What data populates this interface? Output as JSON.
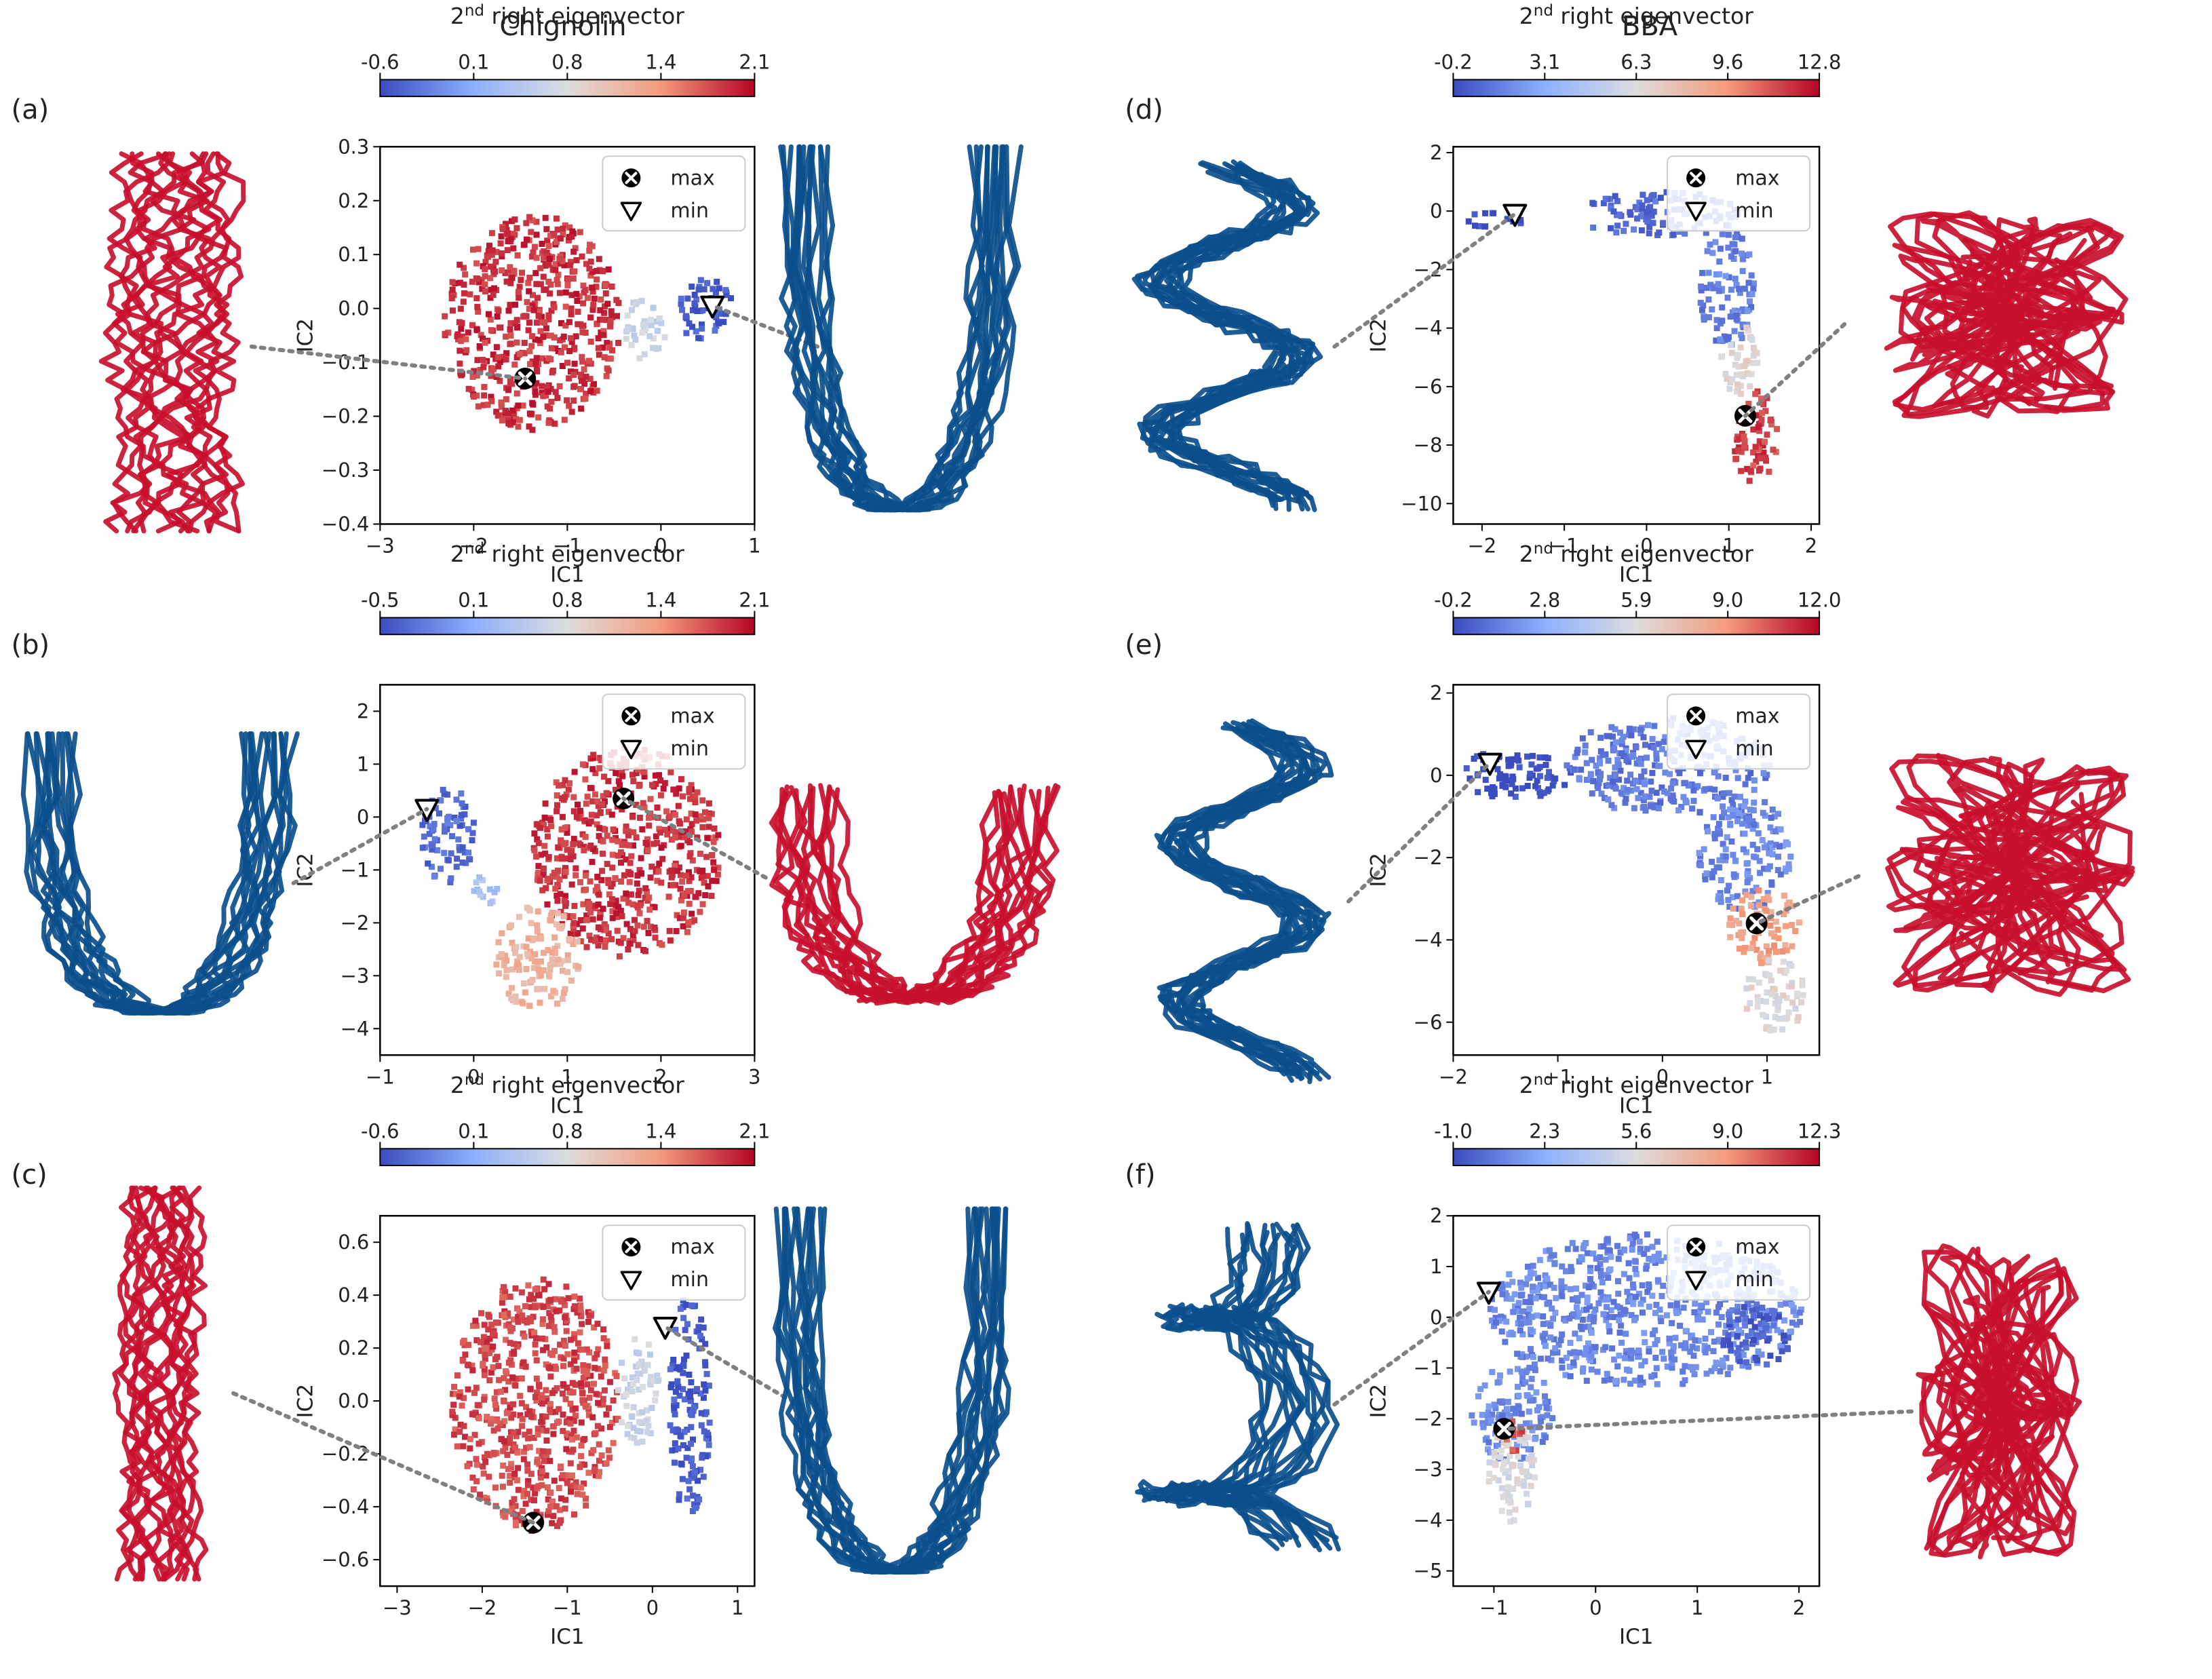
{
  "columns": [
    {
      "title": "Chignolin"
    },
    {
      "title": "BBA"
    }
  ],
  "colorbar_label": {
    "main": "2",
    "sup": "nd",
    "rest": " right eigenvector"
  },
  "legend": {
    "max": "max",
    "min": "min"
  },
  "colors": {
    "structure_max": "#c8102e",
    "structure_min": "#0b4f8c",
    "cmap_low": "#3b4cc0",
    "cmap_mid": "#dddddd",
    "cmap_high": "#b40426",
    "connector": "#808080"
  },
  "chart_data": [
    {
      "panel": "(a)",
      "type": "heatmap",
      "xlabel": "IC1",
      "ylabel": "IC2",
      "xlim": [
        -3,
        1
      ],
      "ylim": [
        -0.4,
        0.3
      ],
      "xticks": [
        "−3",
        "−2",
        "−1",
        "0",
        "1"
      ],
      "yticks": [
        "−0.4",
        "−0.3",
        "−0.2",
        "−0.1",
        "0.0",
        "0.1",
        "0.2",
        "0.3"
      ],
      "colorbar": {
        "ticks": [
          "-0.6",
          "0.1",
          "0.8",
          "1.4",
          "2.1"
        ],
        "min": -0.6,
        "max": 2.1
      },
      "max_point": [
        -1.45,
        -0.13
      ],
      "min_point": [
        0.55,
        0.005
      ],
      "clusters": [
        {
          "cx": -1.4,
          "cy": -0.02,
          "rx": 0.95,
          "ry": 0.2,
          "value": 1.9
        },
        {
          "cx": -0.2,
          "cy": -0.03,
          "rx": 0.22,
          "ry": 0.06,
          "value": 0.6
        },
        {
          "cx": 0.45,
          "cy": 0.0,
          "rx": 0.3,
          "ry": 0.06,
          "value": -0.5
        }
      ]
    },
    {
      "panel": "(b)",
      "type": "heatmap",
      "xlabel": "IC1",
      "ylabel": "IC2",
      "xlim": [
        -1,
        3
      ],
      "ylim": [
        -4.5,
        2.5
      ],
      "xticks": [
        "−1",
        "0",
        "1",
        "2",
        "3"
      ],
      "yticks": [
        "−4",
        "−3",
        "−2",
        "−1",
        "0",
        "1",
        "2"
      ],
      "colorbar": {
        "ticks": [
          "-0.5",
          "0.1",
          "0.8",
          "1.4",
          "2.1"
        ],
        "min": -0.5,
        "max": 2.1
      },
      "max_point": [
        1.6,
        0.35
      ],
      "min_point": [
        -0.5,
        0.15
      ],
      "clusters": [
        {
          "cx": 1.6,
          "cy": -0.6,
          "rx": 1.0,
          "ry": 2.0,
          "value": 1.9
        },
        {
          "cx": 0.65,
          "cy": -2.6,
          "rx": 0.45,
          "ry": 1.0,
          "value": 1.2
        },
        {
          "cx": -0.3,
          "cy": -0.3,
          "rx": 0.3,
          "ry": 0.9,
          "value": -0.3
        },
        {
          "cx": 0.1,
          "cy": -1.3,
          "rx": 0.15,
          "ry": 0.3,
          "value": 0.4
        }
      ]
    },
    {
      "panel": "(c)",
      "type": "heatmap",
      "xlabel": "IC1",
      "ylabel": "IC2",
      "xlim": [
        -3.2,
        1.2
      ],
      "ylim": [
        -0.7,
        0.7
      ],
      "xticks": [
        "−3",
        "−2",
        "−1",
        "0",
        "1"
      ],
      "yticks": [
        "−0.6",
        "−0.4",
        "−0.2",
        "0.0",
        "0.2",
        "0.4",
        "0.6"
      ],
      "colorbar": {
        "ticks": [
          "-0.6",
          "0.1",
          "0.8",
          "1.4",
          "2.1"
        ],
        "min": -0.6,
        "max": 2.1
      },
      "max_point": [
        -1.4,
        -0.46
      ],
      "min_point": [
        0.15,
        0.28
      ],
      "clusters": [
        {
          "cx": -1.4,
          "cy": 0.0,
          "rx": 1.0,
          "ry": 0.48,
          "value": 1.8
        },
        {
          "cx": -0.2,
          "cy": 0.05,
          "rx": 0.25,
          "ry": 0.2,
          "value": 0.6
        },
        {
          "cx": 0.4,
          "cy": 0.0,
          "rx": 0.25,
          "ry": 0.42,
          "value": -0.5
        }
      ]
    },
    {
      "panel": "(d)",
      "type": "heatmap",
      "xlabel": "IC1",
      "ylabel": "IC2",
      "xlim": [
        -2.35,
        2.1
      ],
      "ylim": [
        -10.7,
        2.2
      ],
      "xticks": [
        "−2",
        "−1",
        "0",
        "1",
        "2"
      ],
      "yticks": [
        "−10",
        "−8",
        "−6",
        "−4",
        "−2",
        "0",
        "2"
      ],
      "colorbar": {
        "ticks": [
          "-0.2",
          "3.1",
          "6.3",
          "9.6",
          "12.8"
        ],
        "min": -0.2,
        "max": 12.8
      },
      "max_point": [
        1.2,
        -7.0
      ],
      "min_point": [
        -1.6,
        -0.1
      ],
      "clusters": [
        {
          "cx": 0.1,
          "cy": 0.0,
          "rx": 1.0,
          "ry": 0.8,
          "value": 0.8
        },
        {
          "cx": -1.9,
          "cy": -0.2,
          "rx": 0.4,
          "ry": 0.25,
          "value": -0.2
        },
        {
          "cx": 0.95,
          "cy": -2.5,
          "rx": 0.35,
          "ry": 2.0,
          "value": 1.5
        },
        {
          "cx": 1.1,
          "cy": -5.0,
          "rx": 0.25,
          "ry": 1.2,
          "value": 6.5
        },
        {
          "cx": 1.3,
          "cy": -7.6,
          "rx": 0.3,
          "ry": 1.6,
          "value": 11.5
        }
      ]
    },
    {
      "panel": "(e)",
      "type": "heatmap",
      "xlabel": "IC1",
      "ylabel": "IC2",
      "xlim": [
        -2.0,
        1.5
      ],
      "ylim": [
        -6.8,
        2.2
      ],
      "xticks": [
        "−2",
        "−1",
        "0",
        "1"
      ],
      "yticks": [
        "−6",
        "−4",
        "−2",
        "0",
        "2"
      ],
      "colorbar": {
        "ticks": [
          "-0.2",
          "2.8",
          "5.9",
          "9.0",
          "12.0"
        ],
        "min": -0.2,
        "max": 12.0
      },
      "max_point": [
        0.9,
        -3.6
      ],
      "min_point": [
        -1.65,
        0.3
      ],
      "clusters": [
        {
          "cx": -1.45,
          "cy": 0.1,
          "rx": 0.55,
          "ry": 0.6,
          "value": -0.2
        },
        {
          "cx": 0.0,
          "cy": 0.3,
          "rx": 1.0,
          "ry": 1.2,
          "value": 1.2
        },
        {
          "cx": 0.75,
          "cy": -1.8,
          "rx": 0.45,
          "ry": 1.4,
          "value": 1.6
        },
        {
          "cx": 0.95,
          "cy": -3.6,
          "rx": 0.35,
          "ry": 0.9,
          "value": 8.5
        },
        {
          "cx": 1.05,
          "cy": -5.3,
          "rx": 0.3,
          "ry": 0.9,
          "value": 6.0
        }
      ]
    },
    {
      "panel": "(f)",
      "type": "heatmap",
      "xlabel": "IC1",
      "ylabel": "IC2",
      "xlim": [
        -1.4,
        2.2
      ],
      "ylim": [
        -5.3,
        2.0
      ],
      "xticks": [
        "−1",
        "0",
        "1",
        "2"
      ],
      "yticks": [
        "−5",
        "−4",
        "−3",
        "−2",
        "−1",
        "0",
        "1",
        "2"
      ],
      "colorbar": {
        "ticks": [
          "-1.0",
          "2.3",
          "5.6",
          "9.0",
          "12.3"
        ],
        "min": -1.0,
        "max": 12.3
      },
      "max_point": [
        -0.9,
        -2.2
      ],
      "min_point": [
        -1.05,
        0.5
      ],
      "clusters": [
        {
          "cx": 0.45,
          "cy": 0.2,
          "rx": 1.55,
          "ry": 1.5,
          "value": 1.0
        },
        {
          "cx": 1.55,
          "cy": -0.3,
          "rx": 0.35,
          "ry": 0.6,
          "value": -0.4
        },
        {
          "cx": -0.85,
          "cy": -1.8,
          "rx": 0.4,
          "ry": 1.0,
          "value": 1.0
        },
        {
          "cx": -0.85,
          "cy": -3.0,
          "rx": 0.25,
          "ry": 1.0,
          "value": 5.5
        },
        {
          "cx": -0.85,
          "cy": -2.25,
          "rx": 0.15,
          "ry": 0.35,
          "value": 10.5
        }
      ]
    }
  ]
}
